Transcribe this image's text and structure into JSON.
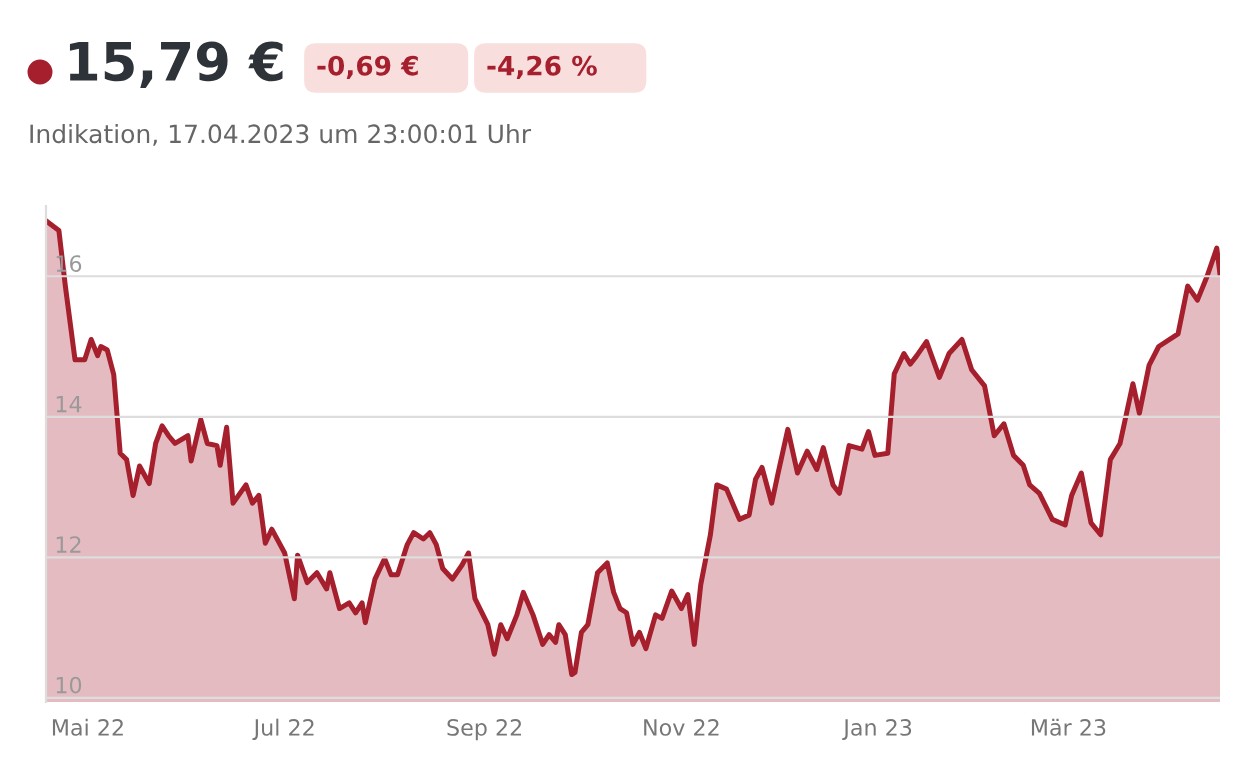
{
  "chart_data": {
    "type": "area",
    "title": "15,79 €",
    "subtitle": "Indikation, 17.04.2023 um 23:00:01 Uhr",
    "annotations": [
      "-0,69 €",
      "-4,26 %"
    ],
    "x": [
      "2022-04-18",
      "2022-04-22",
      "2022-04-24",
      "2022-04-27",
      "2022-04-30",
      "2022-05-02",
      "2022-05-04",
      "2022-05-05",
      "2022-05-07",
      "2022-05-09",
      "2022-05-11",
      "2022-05-13",
      "2022-05-15",
      "2022-05-17",
      "2022-05-20",
      "2022-05-22",
      "2022-05-24",
      "2022-05-26",
      "2022-05-28",
      "2022-06-01",
      "2022-06-02",
      "2022-06-05",
      "2022-06-07",
      "2022-06-10",
      "2022-06-11",
      "2022-06-13",
      "2022-06-15",
      "2022-06-19",
      "2022-06-21",
      "2022-06-23",
      "2022-06-25",
      "2022-06-27",
      "2022-07-01",
      "2022-07-04",
      "2022-07-05",
      "2022-07-08",
      "2022-07-11",
      "2022-07-14",
      "2022-07-15",
      "2022-07-18",
      "2022-07-21",
      "2022-07-23",
      "2022-07-25",
      "2022-07-26",
      "2022-07-29",
      "2022-08-01",
      "2022-08-03",
      "2022-08-05",
      "2022-08-08",
      "2022-08-10",
      "2022-08-13",
      "2022-08-15",
      "2022-08-17",
      "2022-08-19",
      "2022-08-22",
      "2022-08-25",
      "2022-08-27",
      "2022-08-29",
      "2022-09-02",
      "2022-09-04",
      "2022-09-06",
      "2022-09-08",
      "2022-09-11",
      "2022-09-13",
      "2022-09-16",
      "2022-09-19",
      "2022-09-21",
      "2022-09-23",
      "2022-09-24",
      "2022-09-26",
      "2022-09-28",
      "2022-09-29",
      "2022-10-01",
      "2022-10-03",
      "2022-10-06",
      "2022-10-09",
      "2022-10-11",
      "2022-10-13",
      "2022-10-15",
      "2022-10-17",
      "2022-10-19",
      "2022-10-21",
      "2022-10-24",
      "2022-10-26",
      "2022-10-29",
      "2022-11-01",
      "2022-11-03",
      "2022-11-05",
      "2022-11-07",
      "2022-11-10",
      "2022-11-12",
      "2022-11-15",
      "2022-11-19",
      "2022-11-22",
      "2022-11-24",
      "2022-11-26",
      "2022-11-29",
      "2022-12-01",
      "2022-12-04",
      "2022-12-07",
      "2022-12-10",
      "2022-12-13",
      "2022-12-15",
      "2022-12-18",
      "2022-12-20",
      "2022-12-23",
      "2022-12-27",
      "2022-12-29",
      "2022-12-31",
      "2023-01-04",
      "2023-01-06",
      "2023-01-09",
      "2023-01-11",
      "2023-01-13",
      "2023-01-16",
      "2023-01-20",
      "2023-01-23",
      "2023-01-27",
      "2023-01-30",
      "2023-02-03",
      "2023-02-06",
      "2023-02-09",
      "2023-02-12",
      "2023-02-15",
      "2023-02-17",
      "2023-02-20",
      "2023-02-24",
      "2023-02-28",
      "2023-03-02",
      "2023-03-05",
      "2023-03-08",
      "2023-03-11",
      "2023-03-14",
      "2023-03-17",
      "2023-03-21",
      "2023-03-23",
      "2023-03-26",
      "2023-03-29",
      "2023-04-04",
      "2023-04-07",
      "2023-04-10",
      "2023-04-13",
      "2023-04-16",
      "2023-04-17"
    ],
    "series": [
      {
        "color": "#a51f2d",
        "values": [
          16.79,
          16.65,
          15.86,
          14.81,
          14.81,
          15.1,
          14.87,
          15.0,
          14.95,
          14.6,
          13.48,
          13.39,
          12.88,
          13.3,
          13.05,
          13.62,
          13.87,
          13.73,
          13.62,
          13.73,
          13.37,
          13.96,
          13.62,
          13.59,
          13.31,
          13.85,
          12.77,
          13.03,
          12.77,
          12.88,
          12.2,
          12.4,
          12.06,
          11.41,
          12.03,
          11.64,
          11.78,
          11.55,
          11.78,
          11.27,
          11.35,
          11.21,
          11.35,
          11.07,
          11.69,
          11.98,
          11.75,
          11.75,
          12.18,
          12.35,
          12.26,
          12.35,
          12.18,
          11.84,
          11.69,
          11.89,
          12.06,
          11.41,
          11.04,
          10.62,
          11.04,
          10.84,
          11.18,
          11.5,
          11.18,
          10.76,
          10.9,
          10.79,
          11.04,
          10.9,
          10.33,
          10.36,
          10.93,
          11.04,
          11.78,
          11.92,
          11.5,
          11.27,
          11.21,
          10.76,
          10.93,
          10.7,
          11.18,
          11.13,
          11.52,
          11.27,
          11.47,
          10.76,
          11.61,
          12.32,
          13.03,
          12.97,
          12.54,
          12.6,
          13.11,
          13.28,
          12.77,
          13.2,
          13.82,
          13.2,
          13.51,
          13.25,
          13.56,
          13.03,
          12.91,
          13.59,
          13.54,
          13.79,
          13.45,
          13.48,
          14.61,
          14.9,
          14.75,
          14.87,
          15.07,
          14.56,
          14.9,
          15.1,
          14.67,
          14.44,
          13.73,
          13.9,
          13.45,
          13.31,
          13.03,
          12.91,
          12.54,
          12.46,
          12.88,
          13.2,
          12.49,
          12.32,
          13.39,
          13.62,
          14.47,
          14.05,
          14.73,
          15.0,
          15.18,
          15.86,
          15.66,
          16.0,
          16.4,
          16.03
        ]
      }
    ],
    "xlim": [
      "2022-04-18",
      "2023-04-17"
    ],
    "xticks": [
      {
        "value": "2022-05-01",
        "label": "Mai 22"
      },
      {
        "value": "2022-07-01",
        "label": "Jul 22"
      },
      {
        "value": "2022-09-01",
        "label": "Sep 22"
      },
      {
        "value": "2022-11-01",
        "label": "Nov 22"
      },
      {
        "value": "2023-01-01",
        "label": "Jan 23"
      },
      {
        "value": "2023-03-01",
        "label": "Mär 23"
      }
    ],
    "ylim": [
      9.94,
      17.0
    ],
    "yticks": [
      10,
      12,
      14,
      16
    ],
    "grid": "y",
    "legend": false
  }
}
